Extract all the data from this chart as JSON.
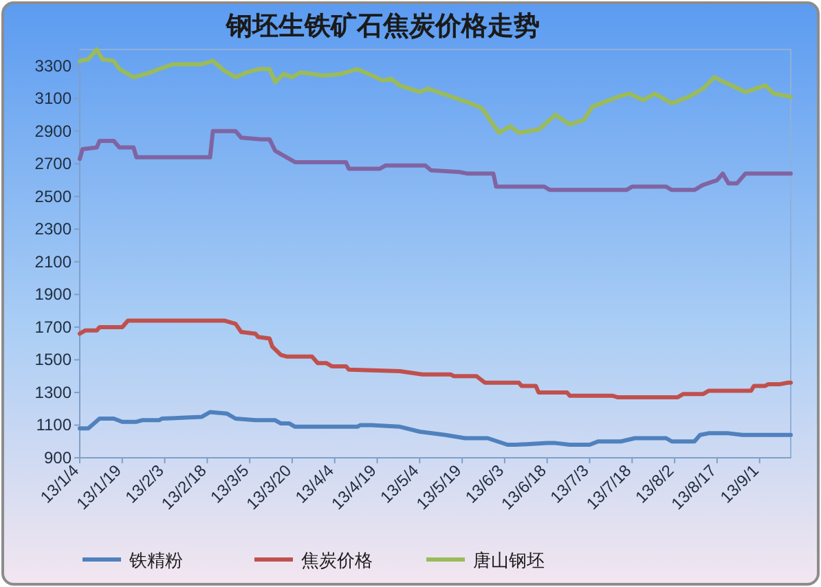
{
  "chart_data": {
    "type": "line",
    "title": "钢坯生铁矿石焦炭价格走势",
    "legend": "bottom",
    "xlim": [
      "--01-04",
      "--09-12"
    ],
    "xticks": [
      {
        "value": "--01-04",
        "label": "13/1/4"
      },
      {
        "value": "--01-19",
        "label": "13/1/19"
      },
      {
        "value": "--02-03",
        "label": "13/2/3"
      },
      {
        "value": "--02-18",
        "label": "13/2/18"
      },
      {
        "value": "--03-05",
        "label": "13/3/5"
      },
      {
        "value": "--03-20",
        "label": "13/3/20"
      },
      {
        "value": "--04-04",
        "label": "13/4/4"
      },
      {
        "value": "--04-19",
        "label": "13/4/19"
      },
      {
        "value": "--05-04",
        "label": "13/5/4"
      },
      {
        "value": "--05-19",
        "label": "13/5/19"
      },
      {
        "value": "--06-03",
        "label": "13/6/3"
      },
      {
        "value": "--06-18",
        "label": "13/6/18"
      },
      {
        "value": "--07-03",
        "label": "13/7/3"
      },
      {
        "value": "--07-18",
        "label": "13/7/18"
      },
      {
        "value": "--08-02",
        "label": "13/8/2"
      },
      {
        "value": "--08-17",
        "label": "13/8/17"
      },
      {
        "value": "--09-01",
        "label": "13/9/1"
      }
    ],
    "ylim": [
      900,
      3400
    ],
    "yticks": [
      900,
      1100,
      1300,
      1500,
      1700,
      1900,
      2100,
      2300,
      2500,
      2700,
      2900,
      3100,
      3300
    ],
    "series": [
      {
        "name": "铁精粉",
        "color": "#4f81bd",
        "x": [
          "--01-04",
          "--01-07",
          "--01-11",
          "--01-16",
          "--01-19",
          "--01-24",
          "--01-26",
          "--02-01",
          "--02-02",
          "--02-16",
          "--02-19",
          "--02-25",
          "--02-28",
          "--03-07",
          "--03-14",
          "--03-16",
          "--03-19",
          "--03-21",
          "--04-12",
          "--04-13",
          "--04-17",
          "--04-27",
          "--05-04",
          "--05-13",
          "--05-20",
          "--05-28",
          "--06-04",
          "--06-07",
          "--06-18",
          "--06-21",
          "--06-26",
          "--07-03",
          "--07-06",
          "--07-14",
          "--07-19",
          "--07-30",
          "--08-01",
          "--08-09",
          "--08-11",
          "--08-14",
          "--08-21",
          "--08-26",
          "--09-12"
        ],
        "values": [
          1080,
          1080,
          1140,
          1140,
          1120,
          1120,
          1130,
          1130,
          1140,
          1150,
          1180,
          1170,
          1140,
          1130,
          1130,
          1110,
          1110,
          1090,
          1090,
          1100,
          1100,
          1090,
          1060,
          1040,
          1020,
          1020,
          980,
          980,
          990,
          990,
          980,
          980,
          1000,
          1000,
          1020,
          1020,
          1000,
          1000,
          1040,
          1050,
          1050,
          1040,
          1040
        ]
      },
      {
        "name": "焦炭价格",
        "color": "#c0504d",
        "x": [
          "--01-04",
          "--01-06",
          "--01-10",
          "--01-11",
          "--01-19",
          "--01-21",
          "--02-24",
          "--02-28",
          "--03-02",
          "--03-07",
          "--03-08",
          "--03-12",
          "--03-13",
          "--03-16",
          "--03-18",
          "--03-27",
          "--03-29",
          "--04-01",
          "--04-03",
          "--04-08",
          "--04-09",
          "--04-27",
          "--05-05",
          "--05-15",
          "--05-16",
          "--05-24",
          "--05-27",
          "--06-08",
          "--06-09",
          "--06-14",
          "--06-15",
          "--06-25",
          "--06-26",
          "--07-11",
          "--07-13",
          "--08-03",
          "--08-05",
          "--08-12",
          "--08-14",
          "--08-29",
          "--08-30",
          "--09-03",
          "--09-04",
          "--09-08",
          "--09-11",
          "--09-12"
        ],
        "values": [
          1660,
          1680,
          1680,
          1700,
          1700,
          1740,
          1740,
          1720,
          1670,
          1660,
          1640,
          1630,
          1580,
          1530,
          1520,
          1520,
          1480,
          1480,
          1460,
          1460,
          1440,
          1430,
          1410,
          1410,
          1400,
          1400,
          1360,
          1360,
          1340,
          1340,
          1300,
          1300,
          1280,
          1280,
          1270,
          1270,
          1290,
          1290,
          1310,
          1310,
          1340,
          1340,
          1350,
          1350,
          1360,
          1360
        ]
      },
      {
        "name": "唐山钢坯",
        "color": "#9bbb59",
        "x": [
          "--01-04",
          "--01-07",
          "--01-10",
          "--01-12",
          "--01-16",
          "--01-18",
          "--01-23",
          "--01-25",
          "--01-29",
          "--02-01",
          "--02-06",
          "--02-11",
          "--02-16",
          "--02-20",
          "--02-24",
          "--02-28",
          "--03-04",
          "--03-08",
          "--03-12",
          "--03-14",
          "--03-17",
          "--03-20",
          "--03-23",
          "--03-31",
          "--04-06",
          "--04-12",
          "--04-16",
          "--04-21",
          "--04-24",
          "--04-27",
          "--05-04",
          "--05-07",
          "--05-17",
          "--05-22",
          "--05-26",
          "--06-01",
          "--06-05",
          "--06-08",
          "--06-15",
          "--06-21",
          "--06-26",
          "--07-01",
          "--07-04",
          "--07-13",
          "--07-17",
          "--07-22",
          "--07-26",
          "--08-01",
          "--08-07",
          "--08-12",
          "--08-16",
          "--08-22",
          "--08-27",
          "--09-03",
          "--09-06",
          "--09-12"
        ],
        "values": [
          3330,
          3340,
          3400,
          3340,
          3330,
          3280,
          3230,
          3240,
          3260,
          3280,
          3310,
          3310,
          3310,
          3330,
          3270,
          3230,
          3260,
          3280,
          3280,
          3200,
          3250,
          3230,
          3260,
          3240,
          3250,
          3280,
          3250,
          3210,
          3220,
          3180,
          3140,
          3160,
          3100,
          3070,
          3040,
          2890,
          2930,
          2890,
          2910,
          3000,
          2940,
          2970,
          3050,
          3110,
          3130,
          3090,
          3130,
          3070,
          3110,
          3160,
          3230,
          3180,
          3140,
          3180,
          3130,
          3110
        ]
      },
      {
        "color": "#8064a2",
        "x": [
          "--01-04",
          "--01-05",
          "--01-10",
          "--01-11",
          "--01-16",
          "--01-18",
          "--01-23",
          "--01-24",
          "--02-19",
          "--02-20",
          "--02-28",
          "--03-02",
          "--03-09",
          "--03-12",
          "--03-14",
          "--03-16",
          "--03-21",
          "--04-08",
          "--04-09",
          "--04-20",
          "--04-22",
          "--05-06",
          "--05-08",
          "--05-18",
          "--05-21",
          "--05-30",
          "--05-31",
          "--06-17",
          "--06-19",
          "--07-16",
          "--07-18",
          "--07-30",
          "--08-01",
          "--08-09",
          "--08-12",
          "--08-17",
          "--08-19",
          "--08-21",
          "--08-24",
          "--08-27",
          "--09-12"
        ],
        "values": [
          2730,
          2790,
          2800,
          2840,
          2840,
          2800,
          2800,
          2740,
          2740,
          2900,
          2900,
          2860,
          2850,
          2850,
          2780,
          2760,
          2710,
          2710,
          2670,
          2670,
          2690,
          2690,
          2660,
          2650,
          2640,
          2640,
          2560,
          2560,
          2540,
          2540,
          2560,
          2560,
          2540,
          2540,
          2570,
          2600,
          2640,
          2580,
          2580,
          2640,
          2640
        ]
      }
    ]
  }
}
